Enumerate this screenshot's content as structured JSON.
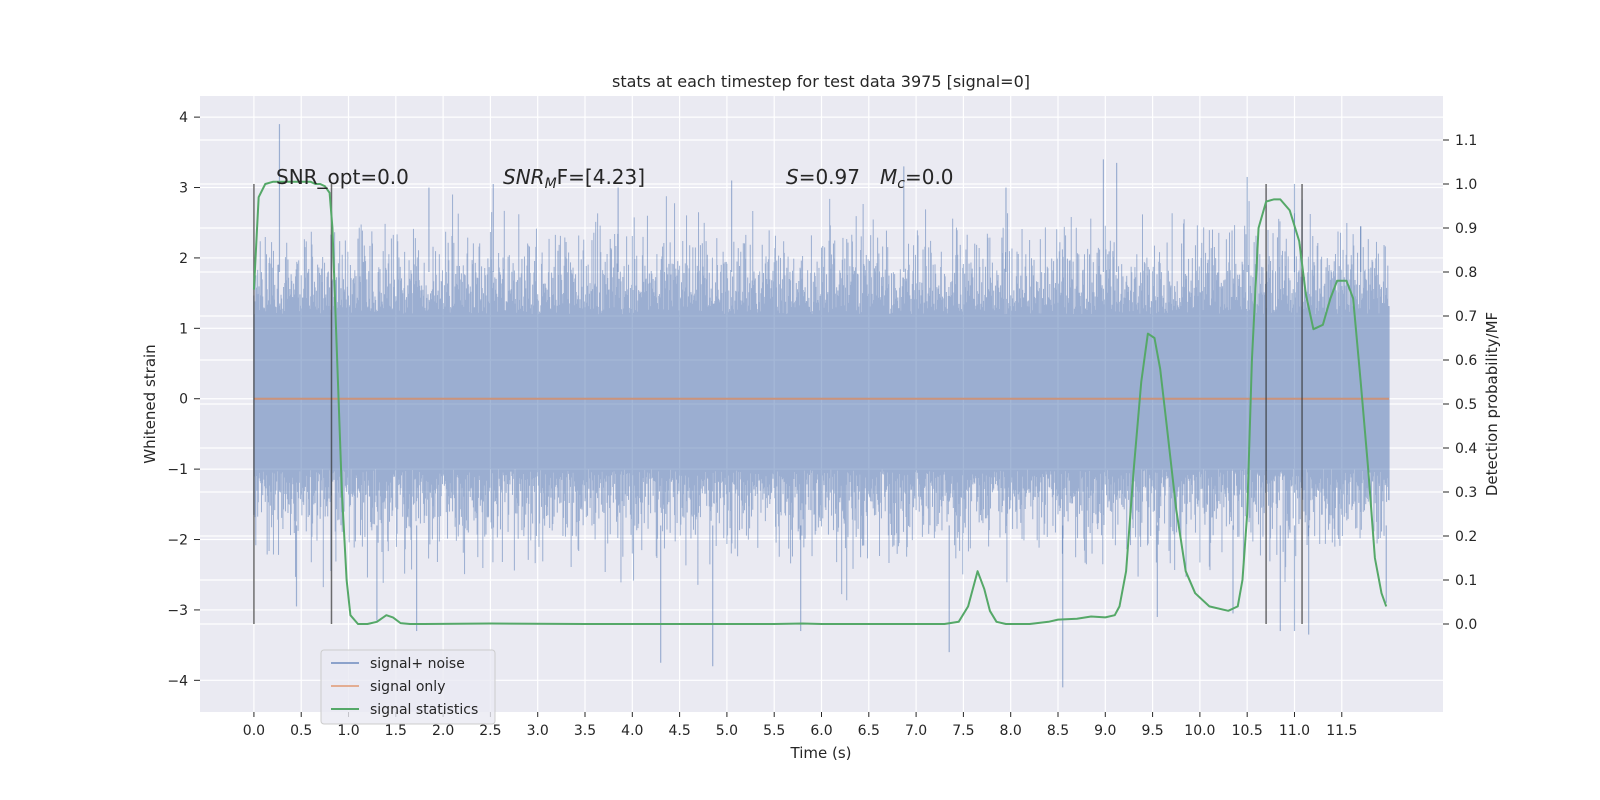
{
  "chart_data": {
    "type": "line",
    "title": "stats at each timestep for test data 3975 [signal=0]",
    "xlabel": "Time (s)",
    "ylabel_left": "Whitened strain",
    "ylabel_right": "Detection probability/MF",
    "xlim": [
      -0.57,
      12.57
    ],
    "ylim_left": [
      -4.45,
      4.3
    ],
    "ylim_right": [
      -0.2,
      1.2
    ],
    "x_ticks": [
      0.0,
      0.5,
      1.0,
      1.5,
      2.0,
      2.5,
      3.0,
      3.5,
      4.0,
      4.5,
      5.0,
      5.5,
      6.0,
      6.5,
      7.0,
      7.5,
      8.0,
      8.5,
      9.0,
      9.5,
      10.0,
      10.5,
      11.0,
      11.5
    ],
    "x_tick_labels": [
      "0.0",
      "0.5",
      "1.0",
      "1.5",
      "2.0",
      "2.5",
      "3.0",
      "3.5",
      "4.0",
      "4.5",
      "5.0",
      "5.5",
      "6.0",
      "6.5",
      "7.0",
      "7.5",
      "8.0",
      "8.5",
      "9.0",
      "9.5",
      "10.0",
      "10.5",
      "11.0",
      "11.5"
    ],
    "y_left_ticks": [
      -4,
      -3,
      -2,
      -1,
      0,
      1,
      2,
      3,
      4
    ],
    "y_left_tick_labels": [
      "−4",
      "−3",
      "−2",
      "−1",
      "0",
      "1",
      "2",
      "3",
      "4"
    ],
    "y_right_ticks": [
      0.0,
      0.1,
      0.2,
      0.3,
      0.4,
      0.5,
      0.6,
      0.7,
      0.8,
      0.9,
      1.0,
      1.1
    ],
    "y_right_tick_labels": [
      "0.0",
      "0.1",
      "0.2",
      "0.3",
      "0.4",
      "0.5",
      "0.6",
      "0.7",
      "0.8",
      "0.9",
      "1.0",
      "1.1"
    ],
    "grid": true,
    "legend_placement": "lower-left",
    "annotations": {
      "snr_opt": "SNR_opt=0.0",
      "snr_mf_name": "SNR",
      "snr_mf_sub": "M",
      "snr_mf_rest": "F=[4.23]",
      "s_name": "S",
      "s_rest": "=0.97",
      "mc_name": "M",
      "mc_sub": "c",
      "mc_rest": "=0.0"
    },
    "vertical_lines_x": [
      0.0,
      0.82,
      10.7,
      11.08
    ],
    "series": [
      {
        "name": "signal+ noise",
        "axis": "left",
        "color": "#4c72b0",
        "alpha": 0.5,
        "x_range": [
          0.0,
          12.0
        ],
        "typical_band": [
          -1.9,
          2.1
        ],
        "peaks_high": [
          [
            0.27,
            3.9
          ],
          [
            8.98,
            3.4
          ],
          [
            9.12,
            3.35
          ],
          [
            10.5,
            3.15
          ],
          [
            6.87,
            3.3
          ],
          [
            2.53,
            3.05
          ],
          [
            5.05,
            3.1
          ],
          [
            11.0,
            3.05
          ],
          [
            1.85,
            3.0
          ],
          [
            3.85,
            3.0
          ],
          [
            7.95,
            3.0
          ],
          [
            11.7,
            2.45
          ]
        ],
        "peaks_low": [
          [
            8.55,
            -4.1
          ],
          [
            4.85,
            -3.8
          ],
          [
            4.3,
            -3.75
          ],
          [
            7.35,
            -3.6
          ],
          [
            11.15,
            -3.35
          ],
          [
            11.0,
            -3.3
          ],
          [
            10.85,
            -3.3
          ],
          [
            1.72,
            -3.3
          ],
          [
            1.3,
            -3.15
          ],
          [
            5.78,
            -3.3
          ],
          [
            9.55,
            -3.1
          ],
          [
            10.35,
            -3.05
          ],
          [
            0.45,
            -2.95
          ],
          [
            11.97,
            -2.9
          ]
        ]
      },
      {
        "name": "signal only",
        "axis": "left",
        "color": "#dd8452",
        "x": [
          0.0,
          12.0
        ],
        "y": [
          0.0,
          0.0
        ]
      },
      {
        "name": "signal statistics",
        "axis": "right",
        "color": "#55a868",
        "x": [
          0.0,
          0.05,
          0.12,
          0.2,
          0.3,
          0.4,
          0.5,
          0.6,
          0.65,
          0.7,
          0.75,
          0.8,
          0.83,
          0.88,
          0.93,
          0.98,
          1.02,
          1.1,
          1.2,
          1.3,
          1.4,
          1.47,
          1.55,
          1.65,
          1.8,
          2.5,
          3.5,
          4.5,
          5.5,
          5.8,
          6.0,
          6.5,
          7.0,
          7.3,
          7.45,
          7.55,
          7.65,
          7.72,
          7.78,
          7.85,
          7.95,
          8.2,
          8.4,
          8.5,
          8.7,
          8.85,
          9.0,
          9.1,
          9.15,
          9.22,
          9.3,
          9.38,
          9.45,
          9.52,
          9.58,
          9.65,
          9.75,
          9.85,
          9.95,
          10.1,
          10.3,
          10.4,
          10.45,
          10.5,
          10.55,
          10.62,
          10.7,
          10.78,
          10.85,
          10.95,
          11.05,
          11.12,
          11.2,
          11.3,
          11.38,
          11.45,
          11.55,
          11.62,
          11.7,
          11.78,
          11.85,
          11.92,
          11.97
        ],
        "y": [
          0.76,
          0.97,
          1.0,
          1.005,
          1.005,
          1.005,
          1.005,
          1.005,
          1.0,
          1.0,
          0.995,
          0.98,
          0.9,
          0.6,
          0.3,
          0.1,
          0.02,
          0.0,
          0.0,
          0.005,
          0.02,
          0.015,
          0.002,
          0.0,
          0.0,
          0.001,
          0.0,
          0.0,
          0.0,
          0.001,
          0.0,
          0.0,
          0.0,
          0.0,
          0.005,
          0.04,
          0.12,
          0.08,
          0.03,
          0.005,
          0.0,
          0.0,
          0.005,
          0.01,
          0.012,
          0.017,
          0.015,
          0.02,
          0.04,
          0.12,
          0.35,
          0.55,
          0.66,
          0.65,
          0.58,
          0.45,
          0.26,
          0.12,
          0.07,
          0.04,
          0.03,
          0.04,
          0.1,
          0.25,
          0.6,
          0.9,
          0.96,
          0.965,
          0.965,
          0.94,
          0.87,
          0.75,
          0.67,
          0.68,
          0.74,
          0.78,
          0.78,
          0.74,
          0.55,
          0.35,
          0.15,
          0.07,
          0.04
        ]
      }
    ]
  }
}
